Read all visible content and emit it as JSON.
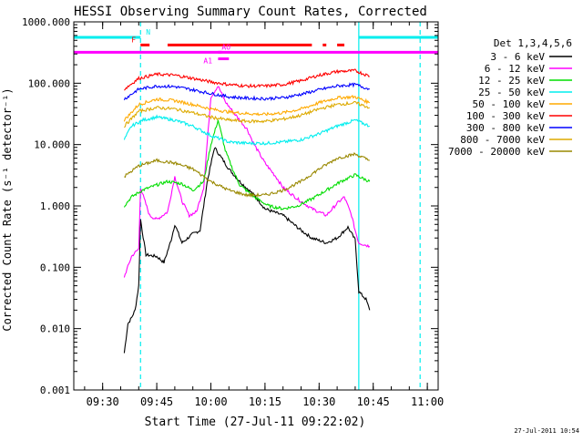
{
  "chart_data": {
    "type": "line",
    "title": "HESSI Observing Summary Count Rates, Corrected",
    "xlabel": "Start Time (27-Jul-11 09:22:02)",
    "ylabel": "Corrected Count Rate (s⁻¹ detector⁻¹)",
    "y_scale": "log",
    "ylim": [
      0.001,
      1000
    ],
    "xlim": [
      "09:22",
      "11:03"
    ],
    "x_ticks": [
      "09:30",
      "09:45",
      "10:00",
      "10:15",
      "10:30",
      "10:45",
      "11:00"
    ],
    "y_ticks": [
      "1000.000",
      "100.000",
      "10.000",
      "1.000",
      "0.100",
      "0.010",
      "0.001"
    ],
    "legend_title": "Det 1,3,4,5,6",
    "legend_position": "right",
    "timestamp": "27-Jul-2011 10:54",
    "series": [
      {
        "name": "3 - 6 keV",
        "color": "#000000",
        "start": "09:36",
        "end": "10:44",
        "points": [
          [
            "09:36",
            0.004
          ],
          [
            "09:37",
            0.012
          ],
          [
            "09:38",
            0.015
          ],
          [
            "09:39",
            0.02
          ],
          [
            "09:40",
            0.05
          ],
          [
            "09:40.5",
            0.6
          ],
          [
            "09:42",
            0.16
          ],
          [
            "09:45",
            0.15
          ],
          [
            "09:47",
            0.12
          ],
          [
            "09:49",
            0.28
          ],
          [
            "09:50",
            0.5
          ],
          [
            "09:52",
            0.25
          ],
          [
            "09:55",
            0.35
          ],
          [
            "09:57",
            0.4
          ],
          [
            "09:59",
            2.5
          ],
          [
            "10:01",
            9
          ],
          [
            "10:03",
            6
          ],
          [
            "10:05",
            4
          ],
          [
            "10:08",
            2.5
          ],
          [
            "10:12",
            1.5
          ],
          [
            "10:15",
            0.9
          ],
          [
            "10:20",
            0.7
          ],
          [
            "10:25",
            0.4
          ],
          [
            "10:28",
            0.3
          ],
          [
            "10:32",
            0.25
          ],
          [
            "10:35",
            0.3
          ],
          [
            "10:38",
            0.45
          ],
          [
            "10:40",
            0.28
          ],
          [
            "10:41",
            0.04
          ],
          [
            "10:43",
            0.03
          ],
          [
            "10:44",
            0.02
          ]
        ]
      },
      {
        "name": "6 - 12 keV",
        "color": "#ff00ff",
        "start": "09:36",
        "end": "10:44",
        "points": [
          [
            "09:36",
            0.07
          ],
          [
            "09:38",
            0.15
          ],
          [
            "09:40",
            0.2
          ],
          [
            "09:40.5",
            2.0
          ],
          [
            "09:43",
            0.7
          ],
          [
            "09:45",
            0.6
          ],
          [
            "09:48",
            0.8
          ],
          [
            "09:50",
            3.0
          ],
          [
            "09:52",
            1.2
          ],
          [
            "09:54",
            0.7
          ],
          [
            "09:56",
            0.8
          ],
          [
            "09:58",
            2.0
          ],
          [
            "10:00",
            60
          ],
          [
            "10:02",
            90
          ],
          [
            "10:04",
            50
          ],
          [
            "10:06",
            35
          ],
          [
            "10:08",
            25
          ],
          [
            "10:10",
            18
          ],
          [
            "10:12",
            10
          ],
          [
            "10:15",
            5
          ],
          [
            "10:18",
            3
          ],
          [
            "10:20",
            2
          ],
          [
            "10:24",
            1.3
          ],
          [
            "10:28",
            0.9
          ],
          [
            "10:32",
            0.7
          ],
          [
            "10:35",
            1.1
          ],
          [
            "10:37",
            1.4
          ],
          [
            "10:39",
            0.7
          ],
          [
            "10:40",
            0.4
          ],
          [
            "10:41",
            0.25
          ],
          [
            "10:44",
            0.22
          ]
        ]
      },
      {
        "name": "12 - 25 keV",
        "color": "#00dd00",
        "start": "09:36",
        "end": "10:44",
        "points": [
          [
            "09:36",
            1.0
          ],
          [
            "09:38",
            1.4
          ],
          [
            "09:41",
            1.8
          ],
          [
            "09:45",
            2.2
          ],
          [
            "09:48",
            2.5
          ],
          [
            "09:52",
            2.3
          ],
          [
            "09:55",
            1.8
          ],
          [
            "09:58",
            2.5
          ],
          [
            "10:00",
            10
          ],
          [
            "10:02",
            25
          ],
          [
            "10:04",
            8
          ],
          [
            "10:06",
            4
          ],
          [
            "10:08",
            2.2
          ],
          [
            "10:12",
            1.4
          ],
          [
            "10:16",
            1.0
          ],
          [
            "10:20",
            0.9
          ],
          [
            "10:24",
            1.0
          ],
          [
            "10:28",
            1.3
          ],
          [
            "10:32",
            1.8
          ],
          [
            "10:36",
            2.5
          ],
          [
            "10:40",
            3.2
          ],
          [
            "10:44",
            2.5
          ]
        ]
      },
      {
        "name": "25 - 50 keV",
        "color": "#00eeee",
        "start": "09:36",
        "end": "10:44",
        "points": [
          [
            "09:36",
            12
          ],
          [
            "09:38",
            20
          ],
          [
            "09:41",
            25
          ],
          [
            "09:45",
            28
          ],
          [
            "09:50",
            25
          ],
          [
            "09:55",
            20
          ],
          [
            "10:00",
            14
          ],
          [
            "10:05",
            11
          ],
          [
            "10:10",
            10.5
          ],
          [
            "10:15",
            10.5
          ],
          [
            "10:20",
            11
          ],
          [
            "10:25",
            12
          ],
          [
            "10:30",
            15
          ],
          [
            "10:35",
            20
          ],
          [
            "10:40",
            25
          ],
          [
            "10:44",
            20
          ]
        ]
      },
      {
        "name": "50 - 100 keV",
        "color": "#ffaa00",
        "start": "09:36",
        "end": "10:44",
        "points": [
          [
            "09:36",
            25
          ],
          [
            "09:40",
            45
          ],
          [
            "09:45",
            55
          ],
          [
            "09:50",
            52
          ],
          [
            "09:55",
            45
          ],
          [
            "10:00",
            38
          ],
          [
            "10:05",
            34
          ],
          [
            "10:10",
            32
          ],
          [
            "10:15",
            31
          ],
          [
            "10:20",
            33
          ],
          [
            "10:25",
            38
          ],
          [
            "10:30",
            48
          ],
          [
            "10:35",
            58
          ],
          [
            "10:40",
            60
          ],
          [
            "10:44",
            48
          ]
        ]
      },
      {
        "name": "100 - 300 keV",
        "color": "#ff0000",
        "start": "09:36",
        "end": "10:44",
        "points": [
          [
            "09:36",
            80
          ],
          [
            "09:40",
            120
          ],
          [
            "09:45",
            140
          ],
          [
            "09:50",
            135
          ],
          [
            "09:55",
            120
          ],
          [
            "10:00",
            105
          ],
          [
            "10:05",
            95
          ],
          [
            "10:10",
            90
          ],
          [
            "10:15",
            90
          ],
          [
            "10:20",
            95
          ],
          [
            "10:25",
            110
          ],
          [
            "10:30",
            135
          ],
          [
            "10:35",
            155
          ],
          [
            "10:40",
            160
          ],
          [
            "10:44",
            130
          ]
        ]
      },
      {
        "name": "300 - 800 keV",
        "color": "#0000ff",
        "start": "09:36",
        "end": "10:44",
        "points": [
          [
            "09:36",
            55
          ],
          [
            "09:40",
            80
          ],
          [
            "09:45",
            90
          ],
          [
            "09:50",
            88
          ],
          [
            "09:55",
            78
          ],
          [
            "10:00",
            68
          ],
          [
            "10:05",
            60
          ],
          [
            "10:10",
            57
          ],
          [
            "10:15",
            56
          ],
          [
            "10:20",
            58
          ],
          [
            "10:25",
            66
          ],
          [
            "10:30",
            78
          ],
          [
            "10:35",
            90
          ],
          [
            "10:40",
            95
          ],
          [
            "10:44",
            80
          ]
        ]
      },
      {
        "name": "800 - 7000 keV",
        "color": "#ddaa00",
        "start": "09:36",
        "end": "10:44",
        "points": [
          [
            "09:36",
            20
          ],
          [
            "09:40",
            35
          ],
          [
            "09:45",
            40
          ],
          [
            "09:50",
            38
          ],
          [
            "09:55",
            33
          ],
          [
            "10:00",
            28
          ],
          [
            "10:05",
            25
          ],
          [
            "10:10",
            24
          ],
          [
            "10:15",
            24
          ],
          [
            "10:20",
            26
          ],
          [
            "10:25",
            30
          ],
          [
            "10:30",
            38
          ],
          [
            "10:35",
            45
          ],
          [
            "10:40",
            48
          ],
          [
            "10:44",
            40
          ]
        ]
      },
      {
        "name": "7000 - 20000 keV",
        "color": "#998800",
        "start": "09:36",
        "end": "10:44",
        "points": [
          [
            "09:36",
            3.0
          ],
          [
            "09:40",
            4.5
          ],
          [
            "09:45",
            5.5
          ],
          [
            "09:50",
            5.0
          ],
          [
            "09:55",
            4.0
          ],
          [
            "10:00",
            2.5
          ],
          [
            "10:05",
            1.8
          ],
          [
            "10:10",
            1.5
          ],
          [
            "10:15",
            1.5
          ],
          [
            "10:20",
            1.8
          ],
          [
            "10:25",
            2.5
          ],
          [
            "10:30",
            4.0
          ],
          [
            "10:35",
            6.0
          ],
          [
            "10:40",
            7.0
          ],
          [
            "10:44",
            5.5
          ]
        ]
      }
    ],
    "vertical_lines": [
      {
        "time": "09:40.5",
        "style": "dashed",
        "color": "#00eeee"
      },
      {
        "time": "10:41",
        "style": "solid",
        "color": "#00eeee"
      },
      {
        "time": "10:58",
        "style": "dashed",
        "color": "#00eeee"
      }
    ],
    "flag_bars": [
      {
        "label": "N",
        "color": "#00eeee",
        "y": 560,
        "segments": [
          [
            "09:22",
            "09:40.5"
          ],
          [
            "10:41",
            "11:03"
          ]
        ]
      },
      {
        "label": "F",
        "color": "#ff0000",
        "y": 420,
        "segments": [
          [
            "09:40.5",
            "09:43"
          ],
          [
            "09:48",
            "10:28"
          ],
          [
            "10:31",
            "10:32"
          ],
          [
            "10:35",
            "10:37"
          ]
        ]
      },
      {
        "label": "",
        "color": "#ff00ff",
        "y": 320,
        "segments": [
          [
            "09:22",
            "11:03"
          ]
        ]
      },
      {
        "label": "A1",
        "color": "#ff00ff",
        "y": 250,
        "segments": [
          [
            "10:02",
            "10:05"
          ]
        ]
      },
      {
        "label": "AO",
        "color": "#ff00ff",
        "y": 320,
        "segments": [
          [
            "10:02",
            "10:03"
          ]
        ]
      }
    ]
  }
}
